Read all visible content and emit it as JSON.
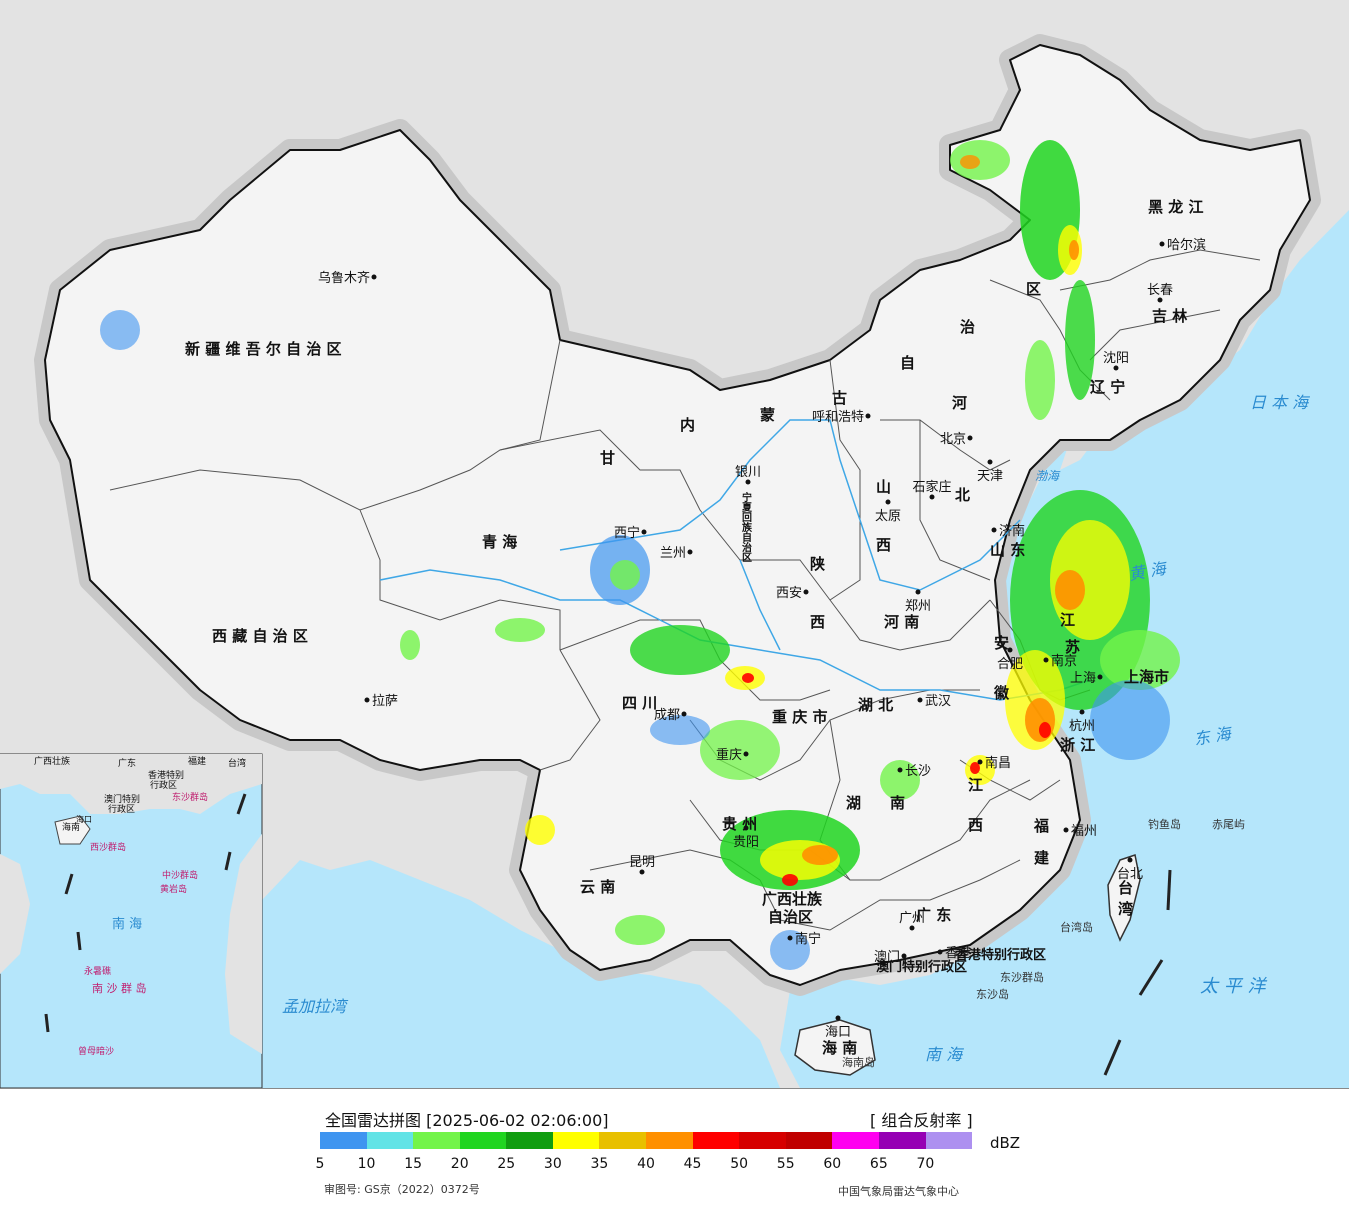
{
  "map": {
    "regions": {
      "xinjiang": "新 疆 维 吾 尔 自 治 区",
      "xizang": "西 藏 自 治 区",
      "qinghai": "青          海",
      "gansu": "甘",
      "neimenggu_1": "内",
      "neimenggu_2": "蒙",
      "neimenggu_3": "古",
      "neimenggu_4": "自",
      "neimenggu_5": "治",
      "neimenggu_6": "区",
      "heilongjiang": "黑  龙  江",
      "jilin": "吉  林",
      "liaoning": "辽  宁",
      "hebei_1": "河",
      "hebei_2": "北",
      "shanxi_1": "山",
      "shanxi_2": "西",
      "shaanxi_1": "陕",
      "shaanxi_2": "西",
      "henan": "河   南",
      "shandong": "山   东",
      "jiangsu_1": "江",
      "jiangsu_2": "苏",
      "anhui_1": "安",
      "anhui_2": "徽",
      "zhejiang": "浙 江",
      "hubei": "湖   北",
      "hunan_1": "湖",
      "hunan_2": "南",
      "jiangxi_1": "江",
      "jiangxi_2": "西",
      "fujian_1": "福",
      "fujian_2": "建",
      "sichuan": "四   川",
      "chongqing": "重 庆 市",
      "guizhou": "贵   州",
      "yunnan": "云       南",
      "guangxi_1": "广西壮族",
      "guangxi_2": "自治区",
      "guangdong": "广   东",
      "hainan": "海   南",
      "taiwan_1": "台",
      "taiwan_2": "湾",
      "ningxia": "宁夏回族自治区",
      "beijing": "北京",
      "tianjin": "天津",
      "shanghai": "上海市",
      "hongkong": "香港特别行政区",
      "macau": "澳门特别行政区"
    },
    "cities": [
      {
        "name": "乌鲁木齐"
      },
      {
        "name": "拉萨"
      },
      {
        "name": "西宁"
      },
      {
        "name": "兰州"
      },
      {
        "name": "银川"
      },
      {
        "name": "呼和浩特"
      },
      {
        "name": "北京"
      },
      {
        "name": "天津"
      },
      {
        "name": "石家庄"
      },
      {
        "name": "太原"
      },
      {
        "name": "济南"
      },
      {
        "name": "郑州"
      },
      {
        "name": "西安"
      },
      {
        "name": "合肥"
      },
      {
        "name": "南京"
      },
      {
        "name": "上海"
      },
      {
        "name": "杭州"
      },
      {
        "name": "武汉"
      },
      {
        "name": "南昌"
      },
      {
        "name": "长沙"
      },
      {
        "name": "成都"
      },
      {
        "name": "重庆"
      },
      {
        "name": "贵阳"
      },
      {
        "name": "昆明"
      },
      {
        "name": "南宁"
      },
      {
        "name": "广州"
      },
      {
        "name": "澳门"
      },
      {
        "name": "香港"
      },
      {
        "name": "福州"
      },
      {
        "name": "台北"
      },
      {
        "name": "海口"
      },
      {
        "name": "沈阳"
      },
      {
        "name": "长春"
      },
      {
        "name": "哈尔滨"
      }
    ],
    "seas": {
      "bohai": "渤海",
      "huanghai": "黄   海",
      "donghai": "东   海",
      "riben": "日 本 海",
      "taiping": "太  平  洋",
      "nanhai": "南 海",
      "mengjiala": "孟加拉湾"
    },
    "islands": {
      "diaoyu": "钓鱼岛",
      "chiwei": "赤尾屿",
      "dongsha_qundao": "东沙群岛",
      "dongsha_dao": "东沙岛",
      "taiwan_dao": "台湾岛",
      "hainan_dao": "海南岛"
    },
    "inset": {
      "guangxi": "广西壮族",
      "guangdong": "广东",
      "fujian": "福建",
      "taiwan": "台湾",
      "hk": "香港特别",
      "hk2": "行政区",
      "macau": "澳门特别",
      "macau2": "行政区",
      "dongsha": "东沙群岛",
      "hainan": "海南",
      "haikou": "海口",
      "xisha": "西沙群岛",
      "zhongsha": "中沙群岛",
      "huangyan": "黄岩岛",
      "nanhai": "南   海",
      "nansha": "南 沙 群 岛",
      "yongshu": "永暑礁",
      "zengmu": "曾母暗沙"
    }
  },
  "legend": {
    "title": "全国雷达拼图 [2025-06-02 02:06:00]",
    "product": "[ 组合反射率 ]",
    "unit": "dBZ",
    "colors": [
      "#3f95f0",
      "#62e3e6",
      "#73f44a",
      "#20d520",
      "#109d10",
      "#ffff00",
      "#e8c000",
      "#ff9000",
      "#ff0000",
      "#d60000",
      "#c00000",
      "#ff00f0",
      "#9600b4",
      "#ad90f0"
    ],
    "ticks": [
      "5",
      "10",
      "15",
      "20",
      "25",
      "30",
      "35",
      "40",
      "45",
      "50",
      "55",
      "60",
      "65",
      "70"
    ],
    "review_number": "审图号: GS京（2022）0372号",
    "agency": "中国气象局雷达气象中心"
  }
}
